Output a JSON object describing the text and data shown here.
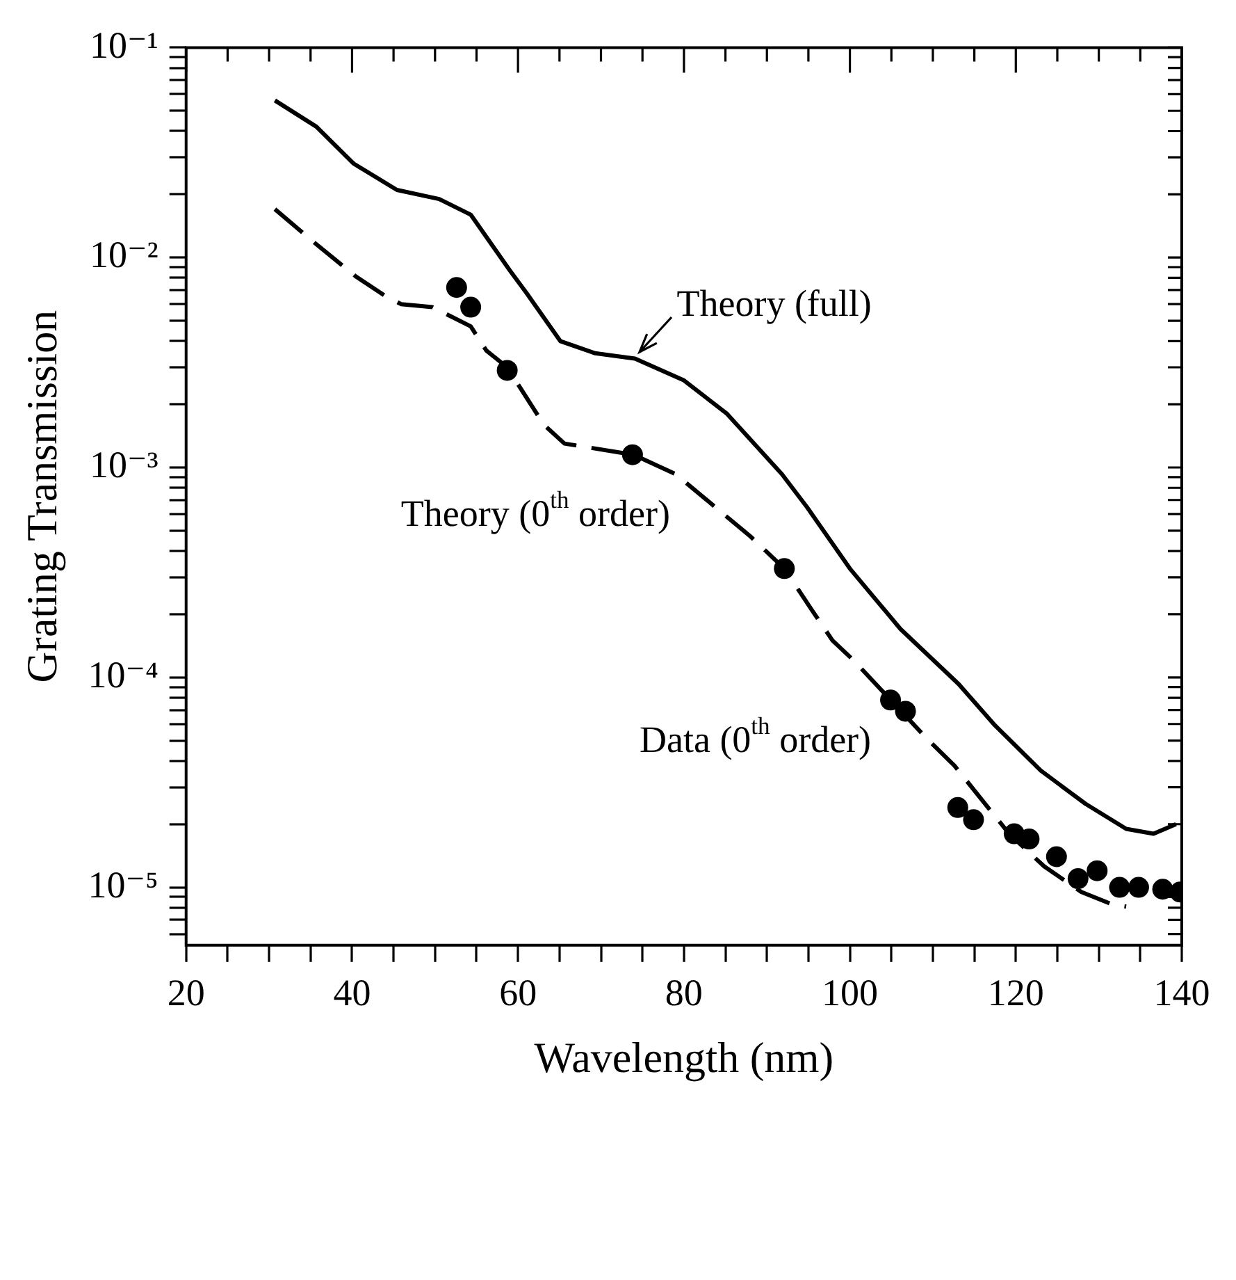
{
  "chart_data": {
    "type": "line",
    "xlabel": "Wavelength (nm)",
    "ylabel": "Grating Transmission",
    "xlim": [
      20,
      140
    ],
    "xticks": [
      20,
      {
        "value": 25,
        "label": null
      },
      {
        "value": 30,
        "label": null
      },
      {
        "value": 35,
        "label": null
      },
      40,
      {
        "value": 45,
        "label": null
      },
      {
        "value": 50,
        "label": null
      },
      {
        "value": 55,
        "label": null
      },
      60,
      {
        "value": 65,
        "label": null
      },
      {
        "value": 70,
        "label": null
      },
      {
        "value": 75,
        "label": null
      },
      80,
      {
        "value": 85,
        "label": null
      },
      {
        "value": 90,
        "label": null
      },
      {
        "value": 95,
        "label": null
      },
      100,
      {
        "value": 105,
        "label": null
      },
      {
        "value": 110,
        "label": null
      },
      {
        "value": 115,
        "label": null
      },
      120,
      {
        "value": 125,
        "label": null
      },
      {
        "value": 130,
        "label": null
      },
      {
        "value": 135,
        "label": null
      },
      140
    ],
    "log": "y",
    "ylim": [
      5.3e-06,
      0.1
    ],
    "yticks": [
      {
        "value": 0.1,
        "label": "10⁻¹"
      },
      {
        "value": 0.09,
        "label": null
      },
      {
        "value": 0.08,
        "label": null
      },
      {
        "value": 0.07,
        "label": null
      },
      {
        "value": 0.06,
        "label": null
      },
      {
        "value": 0.05,
        "label": null
      },
      {
        "value": 0.04,
        "label": null
      },
      {
        "value": 0.03,
        "label": null
      },
      {
        "value": 0.02,
        "label": null
      },
      {
        "value": 0.01,
        "label": "10⁻²"
      },
      {
        "value": 0.009,
        "label": null
      },
      {
        "value": 0.008,
        "label": null
      },
      {
        "value": 0.007,
        "label": null
      },
      {
        "value": 0.006,
        "label": null
      },
      {
        "value": 0.005,
        "label": null
      },
      {
        "value": 0.004,
        "label": null
      },
      {
        "value": 0.003,
        "label": null
      },
      {
        "value": 0.002,
        "label": null
      },
      {
        "value": 0.001,
        "label": "10⁻³"
      },
      {
        "value": 0.0009,
        "label": null
      },
      {
        "value": 0.0008,
        "label": null
      },
      {
        "value": 0.0007,
        "label": null
      },
      {
        "value": 0.0006,
        "label": null
      },
      {
        "value": 0.0005,
        "label": null
      },
      {
        "value": 0.0004,
        "label": null
      },
      {
        "value": 0.0003,
        "label": null
      },
      {
        "value": 0.0002,
        "label": null
      },
      {
        "value": 0.0001,
        "label": "10⁻⁴"
      },
      {
        "value": 9e-05,
        "label": null
      },
      {
        "value": 8e-05,
        "label": null
      },
      {
        "value": 7e-05,
        "label": null
      },
      {
        "value": 6e-05,
        "label": null
      },
      {
        "value": 5e-05,
        "label": null
      },
      {
        "value": 4e-05,
        "label": null
      },
      {
        "value": 3e-05,
        "label": null
      },
      {
        "value": 2e-05,
        "label": null
      },
      {
        "value": 1e-05,
        "label": "10⁻⁵"
      },
      {
        "value": 9e-06,
        "label": null
      },
      {
        "value": 8e-06,
        "label": null
      },
      {
        "value": 7e-06,
        "label": null
      },
      {
        "value": 6e-06,
        "label": null
      }
    ],
    "legend": false,
    "series": [
      {
        "name": "Theory (full)",
        "type": "line",
        "color": "#000000",
        "line_style": "solid",
        "marker": "none",
        "x": [
          30.7,
          35.7,
          40.2,
          45.4,
          50.5,
          54.3,
          59.0,
          61.0,
          65.1,
          69.3,
          74.1,
          80.0,
          85.2,
          91.8,
          94.8,
          100.0,
          106.1,
          113.1,
          117.5,
          123.0,
          128.4,
          133.3,
          136.6,
          139.3
        ],
        "values": [
          0.056,
          0.042,
          0.028,
          0.021,
          0.019,
          0.016,
          0.0087,
          0.0068,
          0.004,
          0.0035,
          0.0033,
          0.0026,
          0.0018,
          0.00093,
          0.00065,
          0.00033,
          0.00017,
          9.3e-05,
          5.9e-05,
          3.6e-05,
          2.5e-05,
          1.9e-05,
          1.8e-05,
          2e-05
        ]
      },
      {
        "name": "Theory (0$^{th}$ order)",
        "type": "line",
        "color": "#000000",
        "line_style": "dashed",
        "marker": "none",
        "x": [
          30.7,
          35.2,
          40.5,
          43.9,
          45.9,
          49.7,
          54.3,
          56.2,
          58.7,
          63.1,
          65.6,
          73.9,
          79.0,
          88.0,
          92.1,
          95.4,
          97.9,
          100.5,
          109.3,
          112.6,
          119.2,
          123.4,
          127.9,
          131.6,
          133.3
        ],
        "values": [
          0.017,
          0.012,
          0.0081,
          0.0066,
          0.006,
          0.0058,
          0.0047,
          0.0036,
          0.003,
          0.0016,
          0.0013,
          0.00115,
          0.00093,
          0.00047,
          0.00033,
          0.00021,
          0.00015,
          0.00012,
          5.1e-05,
          3.8e-05,
          1.8e-05,
          1.26e-05,
          9.5e-06,
          8.3e-06,
          8.1e-06
        ]
      },
      {
        "name": "Data (0$^{th}$ order)",
        "type": "scatter",
        "color": "#000000",
        "marker": "circle",
        "x": [
          52.6,
          54.3,
          58.7,
          73.8,
          92.1,
          104.9,
          106.7,
          113.0,
          114.9,
          119.8,
          121.6,
          124.9,
          127.5,
          129.8,
          132.5,
          134.8,
          137.7,
          139.8
        ],
        "values": [
          0.0072,
          0.0058,
          0.0029,
          0.00115,
          0.00033,
          7.8e-05,
          6.9e-05,
          2.4e-05,
          2.1e-05,
          1.8e-05,
          1.7e-05,
          1.4e-05,
          1.1e-05,
          1.2e-05,
          1e-05,
          1e-05,
          9.8e-06,
          9.5e-06
        ]
      }
    ]
  }
}
